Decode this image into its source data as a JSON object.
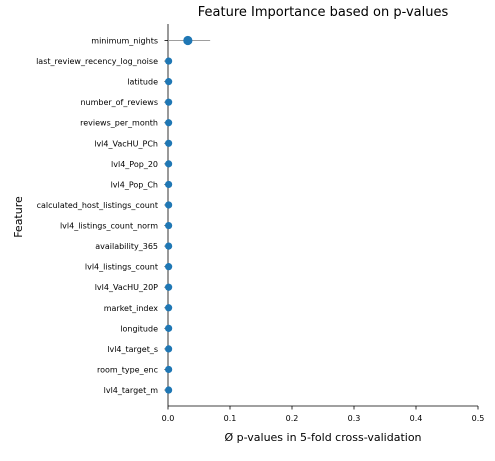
{
  "chart_data": {
    "type": "scatter",
    "title": "Feature Importance based on p-values",
    "xlabel": "Ø p-values in 5-fold cross-validation",
    "ylabel": "Feature",
    "xlim": [
      0,
      0.5
    ],
    "xticks": [
      "0.0",
      "0.1",
      "0.2",
      "0.3",
      "0.4",
      "0.5"
    ],
    "xtick_values": [
      0,
      0.1,
      0.2,
      0.3,
      0.4,
      0.5
    ],
    "grid": false,
    "marker_color": "#1f77b4",
    "errorbar_color": "#9e9e9e",
    "categories": [
      "minimum_nights",
      "last_review_recency_log_noise",
      "latitude",
      "number_of_reviews",
      "reviews_per_month",
      "lvl4_VacHU_PCh",
      "lvl4_Pop_20",
      "lvl4_Pop_Ch",
      "calculated_host_listings_count",
      "lvl4_listings_count_norm",
      "availability_365",
      "lvl4_listings_count",
      "lvl4_VacHU_20P",
      "market_index",
      "longitude",
      "lvl4_target_s",
      "room_type_enc",
      "lvl4_target_m"
    ],
    "values": [
      0.032,
      0.001,
      0.001,
      0.001,
      0.001,
      0.001,
      0.001,
      0.001,
      0.001,
      0.001,
      0.001,
      0.001,
      0.001,
      0.001,
      0.001,
      0.001,
      0.001,
      0.001
    ],
    "errors": [
      0.036,
      0,
      0,
      0,
      0,
      0,
      0,
      0,
      0,
      0,
      0,
      0,
      0,
      0,
      0,
      0,
      0,
      0
    ]
  }
}
